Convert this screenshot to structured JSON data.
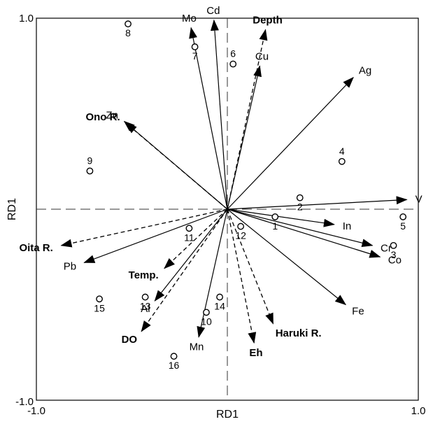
{
  "chart_data": {
    "type": "scatter",
    "title": "",
    "xlabel": "RD1",
    "ylabel": "RD1",
    "xlim": [
      -1.0,
      1.0
    ],
    "ylim": [
      -1.0,
      1.0
    ],
    "x_tick_labels": [
      "-1.0",
      "1.0"
    ],
    "y_tick_labels": [
      "1.0",
      "-1.0"
    ],
    "grid": false,
    "zero_lines": "dashed",
    "vectors_solid": [
      {
        "label": "Mo",
        "x": -0.19,
        "y": 0.95
      },
      {
        "label": "Cd",
        "x": -0.07,
        "y": 0.99
      },
      {
        "label": "Cu",
        "x": 0.17,
        "y": 0.75
      },
      {
        "label": "Ag",
        "x": 0.66,
        "y": 0.69
      },
      {
        "label": "Zn",
        "x": -0.54,
        "y": 0.46
      },
      {
        "label": "V",
        "x": 0.94,
        "y": 0.05
      },
      {
        "label": "In",
        "x": 0.56,
        "y": -0.08
      },
      {
        "label": "Cr",
        "x": 0.76,
        "y": -0.19
      },
      {
        "label": "Co",
        "x": 0.8,
        "y": -0.25
      },
      {
        "label": "Fe",
        "x": 0.62,
        "y": -0.5
      },
      {
        "label": "Pb",
        "x": -0.75,
        "y": -0.28
      },
      {
        "label": "Al",
        "x": -0.38,
        "y": -0.48
      },
      {
        "label": "Mn",
        "x": -0.15,
        "y": -0.67
      }
    ],
    "vectors_dashed": [
      {
        "label": "Depth",
        "x": 0.2,
        "y": 0.94
      },
      {
        "label": "Ono R.",
        "x": -0.53,
        "y": 0.45
      },
      {
        "label": "Oita R.",
        "x": -0.87,
        "y": -0.19
      },
      {
        "label": "Temp.",
        "x": -0.33,
        "y": -0.31
      },
      {
        "label": "DO",
        "x": -0.45,
        "y": -0.64
      },
      {
        "label": "Haruki R.",
        "x": 0.24,
        "y": -0.6
      },
      {
        "label": "Eh",
        "x": 0.14,
        "y": -0.7
      }
    ],
    "points": [
      {
        "label": "1",
        "x": 0.25,
        "y": -0.04
      },
      {
        "label": "2",
        "x": 0.38,
        "y": 0.06
      },
      {
        "label": "3",
        "x": 0.87,
        "y": -0.19
      },
      {
        "label": "4",
        "x": 0.6,
        "y": 0.25
      },
      {
        "label": "5",
        "x": 0.92,
        "y": -0.04
      },
      {
        "label": "6",
        "x": 0.03,
        "y": 0.76
      },
      {
        "label": "7",
        "x": -0.17,
        "y": 0.85
      },
      {
        "label": "8",
        "x": -0.52,
        "y": 0.97
      },
      {
        "label": "9",
        "x": -0.72,
        "y": 0.2
      },
      {
        "label": "10",
        "x": -0.11,
        "y": -0.54
      },
      {
        "label": "11",
        "x": -0.2,
        "y": -0.1
      },
      {
        "label": "12",
        "x": 0.07,
        "y": -0.09
      },
      {
        "label": "13",
        "x": -0.43,
        "y": -0.46
      },
      {
        "label": "14",
        "x": -0.04,
        "y": -0.46
      },
      {
        "label": "15",
        "x": -0.67,
        "y": -0.47
      },
      {
        "label": "16",
        "x": -0.28,
        "y": -0.77
      }
    ]
  }
}
